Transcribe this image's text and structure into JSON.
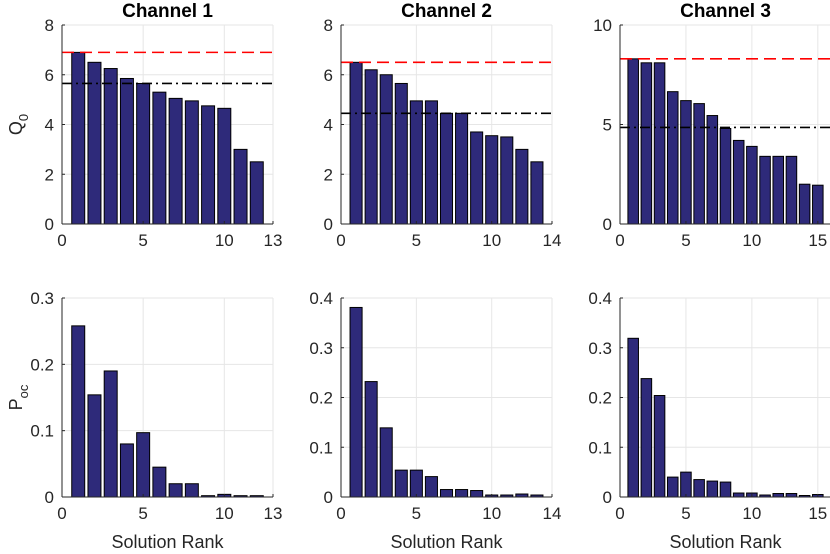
{
  "colors": {
    "bar_fill": "#2e2a7a",
    "ref_red": "#ff0000",
    "ref_black": "#000000"
  },
  "chart_data": [
    {
      "type": "bar",
      "row": 0,
      "col": 0,
      "title": "Channel 1",
      "xlabel": "",
      "ylabel": "Q_0",
      "xlim": [
        0,
        13
      ],
      "ylim": [
        0,
        8
      ],
      "xticks": [
        0,
        5,
        10,
        13
      ],
      "yticks": [
        0,
        2,
        4,
        6,
        8
      ],
      "x": [
        1,
        2,
        3,
        4,
        5,
        6,
        7,
        8,
        9,
        10,
        11,
        12
      ],
      "values": [
        6.9,
        6.5,
        6.25,
        5.85,
        5.65,
        5.3,
        5.05,
        4.95,
        4.75,
        4.65,
        3.0,
        2.5
      ],
      "ref_lines": [
        {
          "y": 6.9,
          "style": "dashed",
          "color": "red"
        },
        {
          "y": 5.65,
          "style": "dashdot",
          "color": "black"
        }
      ]
    },
    {
      "type": "bar",
      "row": 0,
      "col": 1,
      "title": "Channel 2",
      "xlabel": "",
      "ylabel": "",
      "xlim": [
        0,
        14
      ],
      "ylim": [
        0,
        8
      ],
      "xticks": [
        0,
        5,
        10,
        14
      ],
      "yticks": [
        0,
        2,
        4,
        6,
        8
      ],
      "x": [
        1,
        2,
        3,
        4,
        5,
        6,
        7,
        8,
        9,
        10,
        11,
        12,
        13
      ],
      "values": [
        6.5,
        6.2,
        6.0,
        5.65,
        4.95,
        4.95,
        4.45,
        4.45,
        3.7,
        3.55,
        3.5,
        3.0,
        2.5
      ],
      "ref_lines": [
        {
          "y": 6.5,
          "style": "dashed",
          "color": "red"
        },
        {
          "y": 4.45,
          "style": "dashdot",
          "color": "black"
        }
      ]
    },
    {
      "type": "bar",
      "row": 0,
      "col": 2,
      "title": "Channel 3",
      "xlabel": "",
      "ylabel": "",
      "xlim": [
        0,
        16
      ],
      "ylim": [
        0,
        10
      ],
      "xticks": [
        0,
        5,
        10,
        15
      ],
      "yticks": [
        0,
        5,
        10
      ],
      "x": [
        1,
        2,
        3,
        4,
        5,
        6,
        7,
        8,
        9,
        10,
        11,
        12,
        13,
        14,
        15
      ],
      "values": [
        8.3,
        8.1,
        8.1,
        6.65,
        6.2,
        6.05,
        5.45,
        4.8,
        4.2,
        3.9,
        3.4,
        3.4,
        3.4,
        2.0,
        1.95
      ],
      "ref_lines": [
        {
          "y": 8.3,
          "style": "dashed",
          "color": "red"
        },
        {
          "y": 4.85,
          "style": "dashdot",
          "color": "black"
        }
      ]
    },
    {
      "type": "bar",
      "row": 1,
      "col": 0,
      "title": "",
      "xlabel": "Solution Rank",
      "ylabel": "P_oc",
      "xlim": [
        0,
        13
      ],
      "ylim": [
        0,
        0.3
      ],
      "xticks": [
        0,
        5,
        10,
        13
      ],
      "yticks": [
        0,
        0.1,
        0.2,
        0.3
      ],
      "x": [
        1,
        2,
        3,
        4,
        5,
        6,
        7,
        8,
        9,
        10,
        11,
        12
      ],
      "values": [
        0.258,
        0.154,
        0.19,
        0.08,
        0.097,
        0.045,
        0.02,
        0.02,
        0.002,
        0.004,
        0.002,
        0.002
      ],
      "ref_lines": []
    },
    {
      "type": "bar",
      "row": 1,
      "col": 1,
      "title": "",
      "xlabel": "Solution Rank",
      "ylabel": "",
      "xlim": [
        0,
        14
      ],
      "ylim": [
        0,
        0.4
      ],
      "xticks": [
        0,
        5,
        10,
        14
      ],
      "yticks": [
        0,
        0.1,
        0.2,
        0.3,
        0.4
      ],
      "x": [
        1,
        2,
        3,
        4,
        5,
        6,
        7,
        8,
        9,
        10,
        11,
        12,
        13
      ],
      "values": [
        0.381,
        0.232,
        0.139,
        0.054,
        0.054,
        0.041,
        0.015,
        0.015,
        0.013,
        0.004,
        0.004,
        0.006,
        0.004
      ],
      "ref_lines": []
    },
    {
      "type": "bar",
      "row": 1,
      "col": 2,
      "title": "",
      "xlabel": "Solution Rank",
      "ylabel": "",
      "xlim": [
        0,
        16
      ],
      "ylim": [
        0,
        0.4
      ],
      "xticks": [
        0,
        5,
        10,
        15
      ],
      "yticks": [
        0,
        0.1,
        0.2,
        0.3,
        0.4
      ],
      "x": [
        1,
        2,
        3,
        4,
        5,
        6,
        7,
        8,
        9,
        10,
        11,
        12,
        13,
        14,
        15
      ],
      "values": [
        0.319,
        0.238,
        0.204,
        0.04,
        0.05,
        0.035,
        0.032,
        0.03,
        0.008,
        0.008,
        0.004,
        0.007,
        0.007,
        0.003,
        0.005
      ],
      "ref_lines": []
    }
  ]
}
